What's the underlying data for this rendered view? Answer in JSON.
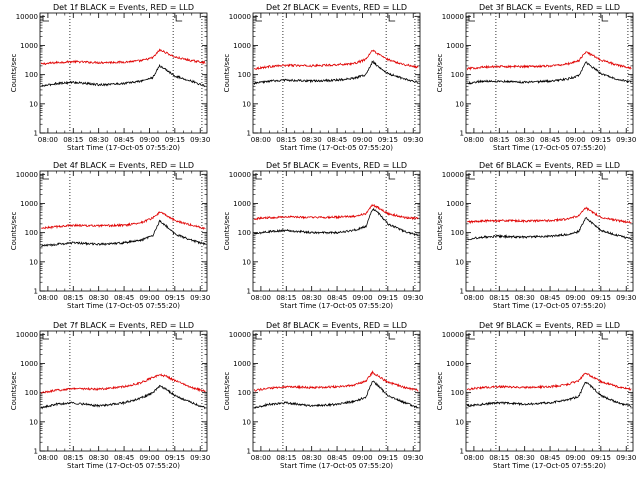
{
  "common": {
    "ylabel": "Counts/sec",
    "xlabel": "Start Time (17-Oct-05 07:55:20)",
    "xticks": [
      "08:00",
      "08:15",
      "08:30",
      "08:45",
      "09:00",
      "09:15",
      "09:30"
    ],
    "yticks": [
      "1",
      "10",
      "100",
      "1000",
      "10000"
    ],
    "series_colors": {
      "events": "#000000",
      "lld": "#e00000"
    }
  },
  "chart_data": [
    {
      "type": "line",
      "title": "Det 1f BLACK = Events, RED = LLD",
      "xlim": [
        "07:55:20",
        "09:34:00"
      ],
      "ylim": [
        1,
        13000
      ],
      "yscale": "log",
      "x": [
        "07:56",
        "08:05",
        "08:15",
        "08:30",
        "08:45",
        "08:55",
        "09:02",
        "09:06",
        "09:09",
        "09:15",
        "09:25",
        "09:33"
      ],
      "series": [
        {
          "color": "#e00000",
          "values": [
            230,
            260,
            280,
            260,
            270,
            300,
            380,
            700,
            600,
            400,
            300,
            260
          ]
        },
        {
          "color": "#000000",
          "values": [
            40,
            50,
            55,
            45,
            50,
            60,
            80,
            200,
            160,
            90,
            60,
            40
          ]
        }
      ],
      "vlines": [
        "08:13",
        "09:14",
        "09:31"
      ]
    },
    {
      "type": "line",
      "title": "Det 2f BLACK = Events, RED = LLD",
      "xlim": [
        "07:55:20",
        "09:34:00"
      ],
      "ylim": [
        1,
        13000
      ],
      "yscale": "log",
      "x": [
        "07:56",
        "08:05",
        "08:15",
        "08:30",
        "08:45",
        "08:55",
        "09:02",
        "09:06",
        "09:09",
        "09:15",
        "09:25",
        "09:33"
      ],
      "series": [
        {
          "color": "#e00000",
          "values": [
            160,
            190,
            210,
            200,
            220,
            240,
            330,
            700,
            520,
            330,
            220,
            180
          ]
        },
        {
          "color": "#000000",
          "values": [
            50,
            60,
            65,
            60,
            65,
            75,
            100,
            280,
            200,
            110,
            70,
            55
          ]
        }
      ],
      "vlines": [
        "08:13",
        "09:14",
        "09:31"
      ]
    },
    {
      "type": "line",
      "title": "Det 3f BLACK = Events, RED = LLD",
      "xlim": [
        "07:55:20",
        "09:34:00"
      ],
      "ylim": [
        1,
        13000
      ],
      "yscale": "log",
      "x": [
        "07:56",
        "08:05",
        "08:15",
        "08:30",
        "08:45",
        "08:55",
        "09:02",
        "09:06",
        "09:09",
        "09:15",
        "09:25",
        "09:33"
      ],
      "series": [
        {
          "color": "#e00000",
          "values": [
            160,
            180,
            190,
            190,
            200,
            230,
            300,
            600,
            500,
            320,
            210,
            170
          ]
        },
        {
          "color": "#000000",
          "values": [
            50,
            60,
            60,
            55,
            60,
            70,
            90,
            270,
            200,
            110,
            70,
            55
          ]
        }
      ],
      "vlines": [
        "08:13",
        "09:14",
        "09:31"
      ]
    },
    {
      "type": "line",
      "title": "Det 4f BLACK = Events, RED = LLD",
      "xlim": [
        "07:55:20",
        "09:34:00"
      ],
      "ylim": [
        1,
        13000
      ],
      "yscale": "log",
      "x": [
        "07:56",
        "08:05",
        "08:15",
        "08:30",
        "08:45",
        "08:55",
        "09:02",
        "09:06",
        "09:09",
        "09:15",
        "09:25",
        "09:33"
      ],
      "series": [
        {
          "color": "#e00000",
          "values": [
            140,
            160,
            180,
            170,
            180,
            220,
            320,
            500,
            420,
            260,
            180,
            140
          ]
        },
        {
          "color": "#000000",
          "values": [
            35,
            40,
            45,
            40,
            45,
            55,
            80,
            250,
            190,
            90,
            55,
            40
          ]
        }
      ],
      "vlines": [
        "08:13",
        "09:14",
        "09:31"
      ]
    },
    {
      "type": "line",
      "title": "Det 5f BLACK = Events, RED = LLD",
      "xlim": [
        "07:55:20",
        "09:34:00"
      ],
      "ylim": [
        1,
        13000
      ],
      "yscale": "log",
      "x": [
        "07:56",
        "08:05",
        "08:15",
        "08:30",
        "08:45",
        "08:55",
        "09:02",
        "09:06",
        "09:09",
        "09:15",
        "09:25",
        "09:33"
      ],
      "series": [
        {
          "color": "#e00000",
          "values": [
            300,
            330,
            350,
            330,
            340,
            360,
            450,
            900,
            750,
            450,
            330,
            300
          ]
        },
        {
          "color": "#000000",
          "values": [
            90,
            110,
            120,
            100,
            100,
            120,
            160,
            650,
            500,
            200,
            110,
            80
          ]
        }
      ],
      "vlines": [
        "08:13",
        "09:14",
        "09:31"
      ]
    },
    {
      "type": "line",
      "title": "Det 6f BLACK = Events, RED = LLD",
      "xlim": [
        "07:55:20",
        "09:34:00"
      ],
      "ylim": [
        1,
        13000
      ],
      "yscale": "log",
      "x": [
        "07:56",
        "08:05",
        "08:15",
        "08:30",
        "08:45",
        "08:55",
        "09:02",
        "09:06",
        "09:09",
        "09:15",
        "09:25",
        "09:33"
      ],
      "series": [
        {
          "color": "#e00000",
          "values": [
            230,
            250,
            260,
            250,
            260,
            290,
            380,
            700,
            550,
            340,
            260,
            220
          ]
        },
        {
          "color": "#000000",
          "values": [
            60,
            70,
            75,
            70,
            75,
            85,
            110,
            320,
            240,
            120,
            80,
            60
          ]
        }
      ],
      "vlines": [
        "08:13",
        "09:14",
        "09:31"
      ]
    },
    {
      "type": "line",
      "title": "Det 7f BLACK = Events, RED = LLD",
      "xlim": [
        "07:55:20",
        "09:34:00"
      ],
      "ylim": [
        1,
        13000
      ],
      "yscale": "log",
      "x": [
        "07:56",
        "08:05",
        "08:15",
        "08:30",
        "08:45",
        "08:55",
        "09:02",
        "09:06",
        "09:09",
        "09:15",
        "09:25",
        "09:33"
      ],
      "series": [
        {
          "color": "#e00000",
          "values": [
            100,
            120,
            140,
            130,
            160,
            220,
            330,
            400,
            380,
            260,
            150,
            110
          ]
        },
        {
          "color": "#000000",
          "values": [
            30,
            40,
            45,
            35,
            45,
            65,
            100,
            170,
            140,
            80,
            45,
            30
          ]
        }
      ],
      "vlines": [
        "08:13",
        "09:14",
        "09:31"
      ]
    },
    {
      "type": "line",
      "title": "Det 8f BLACK = Events, RED = LLD",
      "xlim": [
        "07:55:20",
        "09:34:00"
      ],
      "ylim": [
        1,
        13000
      ],
      "yscale": "log",
      "x": [
        "07:56",
        "08:05",
        "08:15",
        "08:30",
        "08:45",
        "08:55",
        "09:02",
        "09:06",
        "09:09",
        "09:15",
        "09:25",
        "09:33"
      ],
      "series": [
        {
          "color": "#e00000",
          "values": [
            120,
            140,
            160,
            150,
            160,
            180,
            250,
            500,
            380,
            230,
            150,
            120
          ]
        },
        {
          "color": "#000000",
          "values": [
            30,
            40,
            45,
            35,
            40,
            50,
            70,
            260,
            180,
            80,
            45,
            30
          ]
        }
      ],
      "vlines": [
        "08:13",
        "09:14",
        "09:31"
      ]
    },
    {
      "type": "line",
      "title": "Det 9f BLACK = Events, RED = LLD",
      "xlim": [
        "07:55:20",
        "09:34:00"
      ],
      "ylim": [
        1,
        13000
      ],
      "yscale": "log",
      "x": [
        "07:56",
        "08:05",
        "08:15",
        "08:30",
        "08:45",
        "08:55",
        "09:02",
        "09:06",
        "09:09",
        "09:15",
        "09:25",
        "09:33"
      ],
      "series": [
        {
          "color": "#e00000",
          "values": [
            130,
            150,
            160,
            150,
            160,
            190,
            260,
            480,
            380,
            240,
            160,
            130
          ]
        },
        {
          "color": "#000000",
          "values": [
            35,
            40,
            45,
            40,
            45,
            55,
            75,
            230,
            170,
            80,
            45,
            35
          ]
        }
      ],
      "vlines": [
        "08:13",
        "09:14",
        "09:31"
      ]
    }
  ]
}
